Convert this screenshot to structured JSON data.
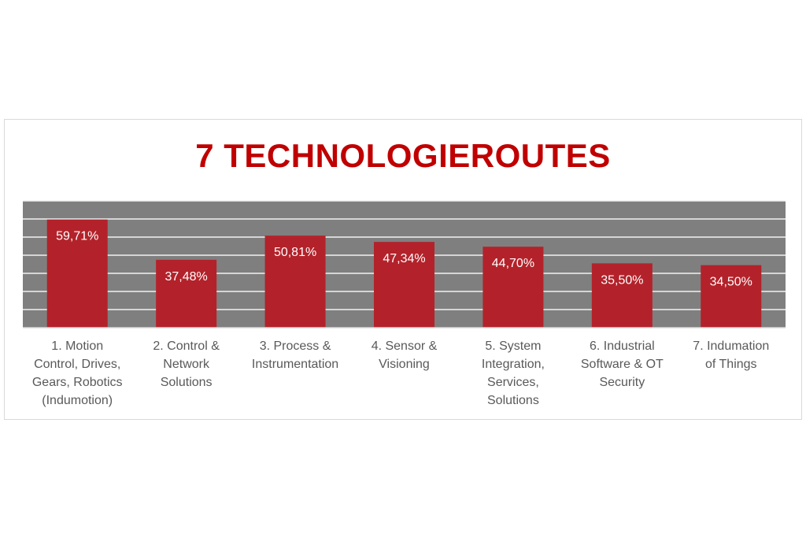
{
  "chart_data": {
    "type": "bar",
    "title": "7 TECHNOLOGIEROUTES",
    "categories": [
      "1. Motion\nControl, Drives,\nGears, Robotics\n(Indumotion)",
      "2. Control &\nNetwork\nSolutions",
      "3. Process &\nInstrumentation",
      "4. Sensor &\nVisioning",
      "5. System\nIntegration,\nServices,\nSolutions",
      "6. Industrial\nSoftware & OT\nSecurity",
      "7. Indumation\nof Things"
    ],
    "values": [
      59.71,
      37.48,
      50.81,
      47.34,
      44.7,
      35.5,
      34.5
    ],
    "data_labels": [
      "59,71%",
      "37,48%",
      "50,81%",
      "47,34%",
      "44,70%",
      "35,50%",
      "34,50%"
    ],
    "ylim": [
      0,
      70
    ],
    "grid": true,
    "colors": {
      "title": "#c00000",
      "bar": "#b3222a",
      "plot_background": "#7f7f7f",
      "gridline": "#f2f2f2",
      "data_label": "#ffffff",
      "category_label": "#595959"
    }
  }
}
